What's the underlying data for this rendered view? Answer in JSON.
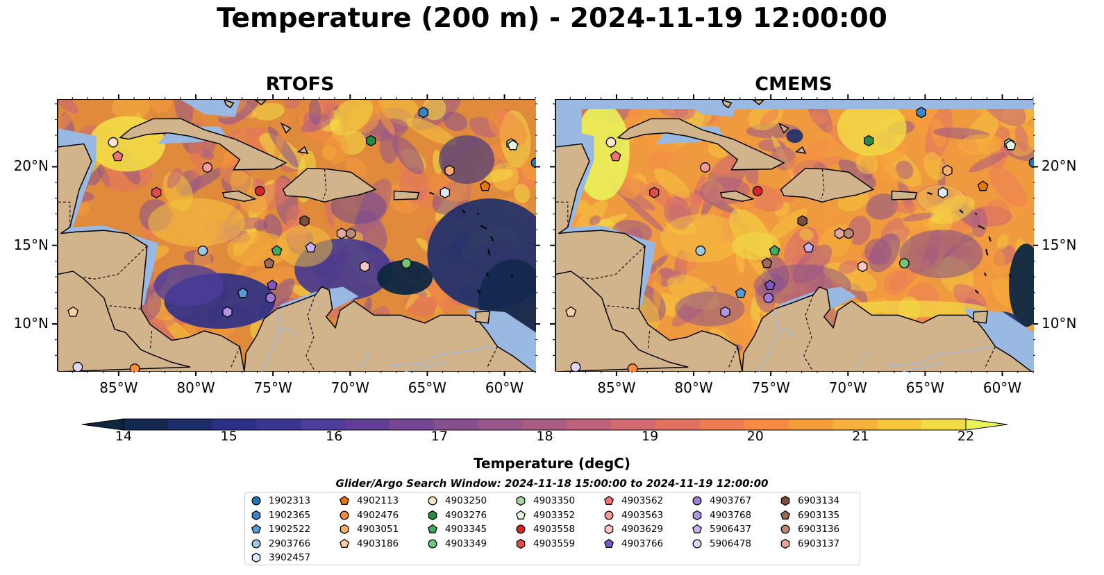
{
  "title": "Temperature (200 m) - 2024-11-19 12:00:00",
  "panels": [
    {
      "name": "RTOFS",
      "variant": "rtofs"
    },
    {
      "name": "CMEMS",
      "variant": "cmems"
    }
  ],
  "axes": {
    "lon_ticks": [
      "85°W",
      "80°W",
      "75°W",
      "70°W",
      "65°W",
      "60°W"
    ],
    "lat_ticks": [
      "20°N",
      "15°N",
      "10°N"
    ],
    "lon_range": [
      -89,
      -58
    ],
    "lat_range": [
      7,
      24.3
    ]
  },
  "colorbar": {
    "label": "Temperature (degC)",
    "min": 14,
    "max": 22,
    "extend": "both",
    "ticks": [
      "14",
      "15",
      "16",
      "17",
      "18",
      "19",
      "20",
      "21",
      "22"
    ],
    "colors": [
      "#0d2740",
      "#13284f",
      "#1c2d6a",
      "#2b2f86",
      "#3b3494",
      "#4e3c9a",
      "#623f97",
      "#754694",
      "#86508e",
      "#985689",
      "#ab5c83",
      "#bf627c",
      "#d16a72",
      "#e17262",
      "#ec7d53",
      "#f48c44",
      "#f69d3a",
      "#f7b03a",
      "#f6c63d",
      "#f2dc45",
      "#eaf25a"
    ]
  },
  "land_color": "#d2b48c",
  "shallow_color": "#9ab9e2",
  "search_window": "Glider/Argo Search Window: 2024-11-18 15:00:00 to 2024-11-19 12:00:00",
  "legend_items": [
    {
      "id": "1902313",
      "color": "#1f77b4",
      "shape": "circle"
    },
    {
      "id": "1902365",
      "color": "#3a85c2",
      "shape": "hexagon"
    },
    {
      "id": "1902522",
      "color": "#5a9bd5",
      "shape": "pentagon"
    },
    {
      "id": "2903766",
      "color": "#9ecae1",
      "shape": "circle"
    },
    {
      "id": "3902457",
      "color": "#deebf7",
      "shape": "hexagon"
    },
    {
      "id": "4902113",
      "color": "#e6750a",
      "shape": "pentagon"
    },
    {
      "id": "4902476",
      "color": "#fd8d3c",
      "shape": "circle"
    },
    {
      "id": "4903051",
      "color": "#fdae6b",
      "shape": "hexagon"
    },
    {
      "id": "4903186",
      "color": "#fdd0a2",
      "shape": "pentagon"
    },
    {
      "id": "4903250",
      "color": "#fee6ce",
      "shape": "circle"
    },
    {
      "id": "4903276",
      "color": "#238b45",
      "shape": "hexagon"
    },
    {
      "id": "4903345",
      "color": "#41ab5d",
      "shape": "pentagon"
    },
    {
      "id": "4903349",
      "color": "#74c476",
      "shape": "circle"
    },
    {
      "id": "4903350",
      "color": "#a1d99b",
      "shape": "hexagon"
    },
    {
      "id": "4903352",
      "color": "#e5f5e0",
      "shape": "pentagon"
    },
    {
      "id": "4903558",
      "color": "#d62728",
      "shape": "circle"
    },
    {
      "id": "4903559",
      "color": "#e34a4a",
      "shape": "hexagon"
    },
    {
      "id": "4903562",
      "color": "#f07474",
      "shape": "pentagon"
    },
    {
      "id": "4903563",
      "color": "#f59a9a",
      "shape": "circle"
    },
    {
      "id": "4903629",
      "color": "#fcc5c0",
      "shape": "hexagon"
    },
    {
      "id": "4903766",
      "color": "#7e57c2",
      "shape": "pentagon"
    },
    {
      "id": "4903767",
      "color": "#9e7bd6",
      "shape": "circle"
    },
    {
      "id": "4903768",
      "color": "#b395e3",
      "shape": "hexagon"
    },
    {
      "id": "5906437",
      "color": "#c8b1ee",
      "shape": "pentagon"
    },
    {
      "id": "5906478",
      "color": "#e2d3f8",
      "shape": "circle"
    },
    {
      "id": "6903134",
      "color": "#7a4e3a",
      "shape": "hexagon"
    },
    {
      "id": "6903135",
      "color": "#9a6a55",
      "shape": "pentagon"
    },
    {
      "id": "6903136",
      "color": "#bb8a75",
      "shape": "circle"
    },
    {
      "id": "6903137",
      "color": "#e3a898",
      "shape": "hexagon"
    }
  ],
  "floats": [
    {
      "id": "1902313",
      "lon": -58.0,
      "lat": 20.3
    },
    {
      "id": "1902365",
      "lon": -65.3,
      "lat": 23.5
    },
    {
      "id": "1902522",
      "lon": -77.0,
      "lat": 12.0
    },
    {
      "id": "2903766",
      "lon": -79.6,
      "lat": 14.7
    },
    {
      "id": "3902457",
      "lon": -63.9,
      "lat": 18.4
    },
    {
      "id": "4902113",
      "lon": -61.3,
      "lat": 18.8
    },
    {
      "id": "4902476",
      "lon": -84.0,
      "lat": 7.2
    },
    {
      "id": "4903051",
      "lon": -63.6,
      "lat": 19.8
    },
    {
      "id": "4903186",
      "lon": -88.0,
      "lat": 10.8
    },
    {
      "id": "4903250",
      "lon": -85.4,
      "lat": 21.6
    },
    {
      "id": "4903276",
      "lon": -68.7,
      "lat": 21.7
    },
    {
      "id": "4903345",
      "lon": -74.8,
      "lat": 14.7
    },
    {
      "id": "4903349",
      "lon": -66.4,
      "lat": 13.9
    },
    {
      "id": "4903350",
      "lon": -59.6,
      "lat": 21.5
    },
    {
      "id": "4903352",
      "lon": -59.5,
      "lat": 21.4
    },
    {
      "id": "4903558",
      "lon": -75.9,
      "lat": 18.5
    },
    {
      "id": "4903559",
      "lon": -82.6,
      "lat": 18.4
    },
    {
      "id": "4903562",
      "lon": -85.1,
      "lat": 20.7
    },
    {
      "id": "4903563",
      "lon": -79.3,
      "lat": 20.0
    },
    {
      "id": "4903629",
      "lon": -69.1,
      "lat": 13.7
    },
    {
      "id": "4903766",
      "lon": -75.1,
      "lat": 12.5
    },
    {
      "id": "4903767",
      "lon": -75.2,
      "lat": 11.7
    },
    {
      "id": "4903768",
      "lon": -78.0,
      "lat": 10.8
    },
    {
      "id": "5906437",
      "lon": -72.6,
      "lat": 14.9
    },
    {
      "id": "5906478",
      "lon": -87.7,
      "lat": 7.3
    },
    {
      "id": "6903134",
      "lon": -73.0,
      "lat": 16.6
    },
    {
      "id": "6903135",
      "lon": -75.3,
      "lat": 13.9
    },
    {
      "id": "6903136",
      "lon": -70.0,
      "lat": 15.8
    },
    {
      "id": "6903137",
      "lon": -70.6,
      "lat": 15.8
    }
  ]
}
